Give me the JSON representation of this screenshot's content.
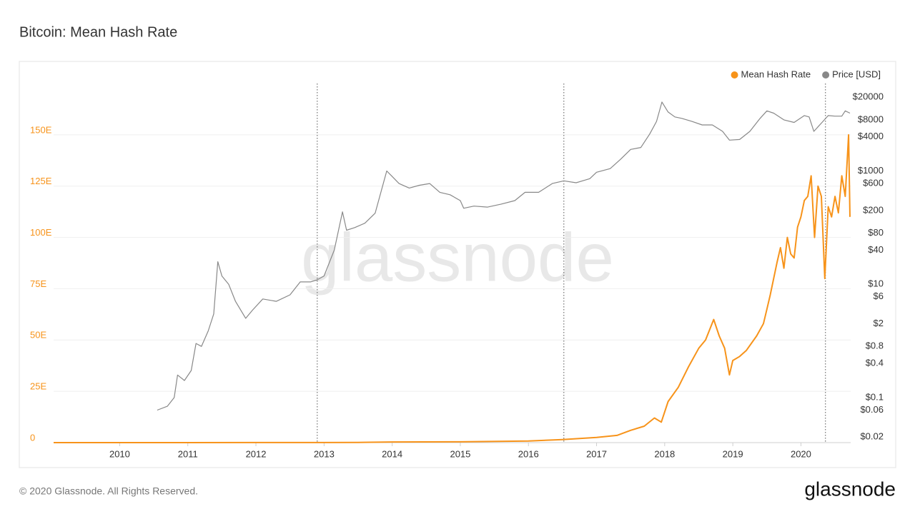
{
  "chart_data": {
    "type": "line",
    "title": "Bitcoin: Mean Hash Rate",
    "watermark": "glassnode",
    "footer": "© 2020 Glassnode. All Rights Reserved.",
    "logo": "glassnode",
    "xlim": [
      2009.03,
      2020.73
    ],
    "xticks": [
      2010,
      2011,
      2012,
      2013,
      2014,
      2015,
      2016,
      2017,
      2018,
      2019,
      2020
    ],
    "halvings": [
      2012.9,
      2016.52,
      2020.36
    ],
    "ylim": [
      0,
      175
    ],
    "yticks": [
      0,
      {
        "value": 25,
        "label": "25E"
      },
      {
        "value": 50,
        "label": "50E"
      },
      {
        "value": 75,
        "label": "75E"
      },
      {
        "value": 100,
        "label": "100E"
      },
      {
        "value": 125,
        "label": "125E"
      },
      {
        "value": 150,
        "label": "150E"
      }
    ],
    "y2lim": [
      0.016,
      35000
    ],
    "y2log": true,
    "y2ticks": [
      {
        "value": 20000,
        "label": "$20000"
      },
      {
        "value": 8000,
        "label": "$8000"
      },
      {
        "value": 4000,
        "label": "$4000"
      },
      {
        "value": 1000,
        "label": "$1000"
      },
      {
        "value": 600,
        "label": "$600"
      },
      {
        "value": 200,
        "label": "$200"
      },
      {
        "value": 80,
        "label": "$80"
      },
      {
        "value": 40,
        "label": "$40"
      },
      {
        "value": 10,
        "label": "$10"
      },
      {
        "value": 6,
        "label": "$6"
      },
      {
        "value": 2,
        "label": "$2"
      },
      {
        "value": 0.8,
        "label": "$0.8"
      },
      {
        "value": 0.4,
        "label": "$0.4"
      },
      {
        "value": 0.1,
        "label": "$0.1"
      },
      {
        "value": 0.06,
        "label": "$0.06"
      },
      {
        "value": 0.02,
        "label": "$0.02"
      }
    ],
    "grid": true,
    "legend": "top-right",
    "series": [
      {
        "name": "Mean Hash Rate",
        "color": "#f7931a",
        "x": [
          2009.03,
          2011,
          2012,
          2013,
          2013.5,
          2014,
          2015,
          2016,
          2016.5,
          2017,
          2017.3,
          2017.5,
          2017.7,
          2017.85,
          2017.95,
          2018.05,
          2018.2,
          2018.35,
          2018.5,
          2018.6,
          2018.72,
          2018.8,
          2018.88,
          2018.95,
          2019.0,
          2019.1,
          2019.2,
          2019.35,
          2019.45,
          2019.5,
          2019.55,
          2019.6,
          2019.65,
          2019.7,
          2019.75,
          2019.8,
          2019.85,
          2019.9,
          2019.95,
          2020.0,
          2020.05,
          2020.1,
          2020.15,
          2020.2,
          2020.25,
          2020.3,
          2020.35,
          2020.4,
          2020.45,
          2020.5,
          2020.55,
          2020.6,
          2020.65,
          2020.7,
          2020.72
        ],
        "values": [
          0,
          0.01,
          0.02,
          0.03,
          0.1,
          0.3,
          0.4,
          0.8,
          1.5,
          2.5,
          3.5,
          6,
          8,
          12,
          10,
          20,
          27,
          37,
          46,
          50,
          60,
          52,
          46,
          33,
          40,
          42,
          45,
          52,
          58,
          65,
          72,
          80,
          88,
          95,
          85,
          100,
          92,
          90,
          105,
          110,
          118,
          120,
          130,
          100,
          125,
          120,
          80,
          115,
          110,
          120,
          112,
          130,
          120,
          150,
          110
        ]
      },
      {
        "name": "Price [USD]",
        "color": "#888888",
        "axis": "y2",
        "x": [
          2010.55,
          2010.7,
          2010.8,
          2010.85,
          2010.95,
          2011.05,
          2011.12,
          2011.2,
          2011.3,
          2011.38,
          2011.44,
          2011.5,
          2011.6,
          2011.7,
          2011.85,
          2011.95,
          2012.1,
          2012.3,
          2012.5,
          2012.65,
          2012.8,
          2012.9,
          2013.0,
          2013.15,
          2013.27,
          2013.33,
          2013.45,
          2013.6,
          2013.75,
          2013.92,
          2014.0,
          2014.1,
          2014.25,
          2014.4,
          2014.55,
          2014.7,
          2014.85,
          2015.0,
          2015.05,
          2015.2,
          2015.4,
          2015.6,
          2015.8,
          2015.95,
          2016.15,
          2016.35,
          2016.52,
          2016.7,
          2016.9,
          2017.0,
          2017.2,
          2017.35,
          2017.5,
          2017.65,
          2017.78,
          2017.88,
          2017.96,
          2018.05,
          2018.15,
          2018.25,
          2018.4,
          2018.55,
          2018.7,
          2018.85,
          2018.95,
          2019.1,
          2019.25,
          2019.4,
          2019.5,
          2019.6,
          2019.75,
          2019.9,
          2020.05,
          2020.12,
          2020.19,
          2020.3,
          2020.4,
          2020.5,
          2020.6,
          2020.65,
          2020.72
        ],
        "values": [
          0.06,
          0.07,
          0.1,
          0.25,
          0.2,
          0.3,
          0.9,
          0.8,
          1.5,
          3,
          25,
          14,
          10,
          5,
          2.5,
          3.5,
          5.5,
          5,
          6.5,
          11,
          11,
          12,
          14,
          40,
          190,
          90,
          100,
          120,
          180,
          1000,
          800,
          600,
          500,
          560,
          600,
          420,
          380,
          300,
          220,
          240,
          230,
          260,
          300,
          420,
          420,
          600,
          670,
          620,
          730,
          950,
          1100,
          1600,
          2400,
          2600,
          4500,
          7500,
          16500,
          11000,
          9000,
          8500,
          7500,
          6500,
          6500,
          5000,
          3500,
          3600,
          5000,
          8500,
          11500,
          10500,
          8000,
          7200,
          9500,
          9000,
          5000,
          7000,
          9500,
          9300,
          9300,
          11500,
          10500
        ]
      }
    ]
  }
}
